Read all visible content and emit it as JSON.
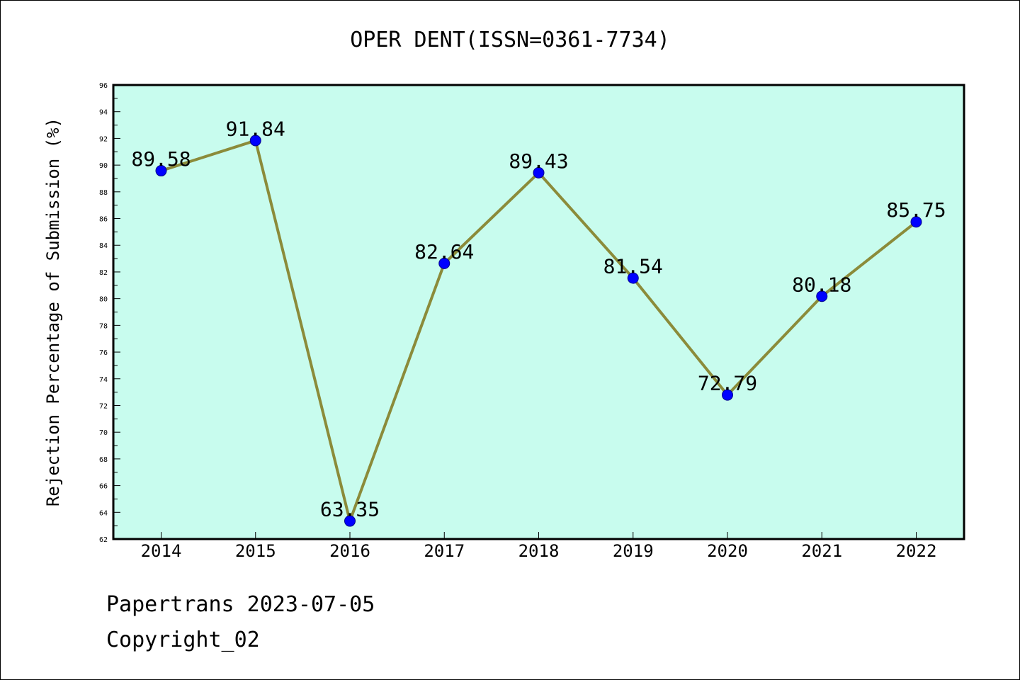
{
  "chart_data": {
    "type": "line",
    "title": "OPER DENT(ISSN=0361-7734)",
    "xlabel": "",
    "ylabel": "Rejection Percentage of Submission (%)",
    "categories": [
      "2014",
      "2015",
      "2016",
      "2017",
      "2018",
      "2019",
      "2020",
      "2021",
      "2022"
    ],
    "series": [
      {
        "values": [
          89.58,
          91.84,
          63.35,
          82.64,
          89.43,
          81.54,
          72.79,
          80.18,
          85.75
        ],
        "data_labels": [
          "89.58",
          "91.84",
          "63.35",
          "82.64",
          "89.43",
          "81.54",
          "72.79",
          "80.18",
          "85.75"
        ]
      }
    ],
    "ylim": [
      62,
      96
    ],
    "yticks": [
      "62",
      "64",
      "66",
      "68",
      "70",
      "72",
      "74",
      "76",
      "78",
      "80",
      "82",
      "84",
      "86",
      "88",
      "90",
      "92",
      "94",
      "96"
    ],
    "grid": false,
    "legend": "none",
    "colors": {
      "plot_background": "#c8fcee",
      "line": "#8b8b3a",
      "marker": "#0000ff"
    }
  },
  "footer": {
    "line1": "Papertrans 2023-07-05",
    "line2": "Copyright_02"
  }
}
